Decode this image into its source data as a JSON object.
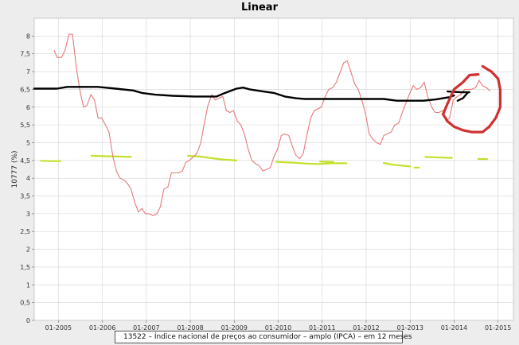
{
  "chart_data": {
    "type": "line",
    "title": "Linear",
    "ylabel": "10777 (%)",
    "xlabel": "",
    "ylim": [
      0,
      8.5
    ],
    "yticks": [
      0,
      0.5,
      1,
      1.5,
      2,
      2.5,
      3,
      3.5,
      4,
      4.5,
      5,
      5.5,
      6,
      6.5,
      7,
      7.5,
      8
    ],
    "ytick_labels": [
      "0",
      "0,5",
      "1",
      "1,5",
      "2",
      "2,5",
      "3",
      "3,5",
      "4",
      "4,5",
      "5",
      "5,5",
      "6",
      "6,5",
      "7",
      "7,5",
      "8"
    ],
    "xlim": [
      2004.45,
      2015.35
    ],
    "xticks": [
      2005,
      2006,
      2007,
      2008,
      2009,
      2010,
      2011,
      2012,
      2013,
      2014,
      2015
    ],
    "xtick_labels": [
      "01-2005",
      "01-2006",
      "01-2007",
      "01-2008",
      "01-2009",
      "01-2010",
      "01-2011",
      "01-2012",
      "01-2013",
      "01-2014",
      "01-2015"
    ],
    "grid": true,
    "legend_position": "bottom",
    "series": [
      {
        "name": "13522 – Índice nacional de preços ao consumidor – amplo (IPCA) – em 12 meses",
        "color": "#e8787a",
        "points": [
          [
            2004.9,
            7.6
          ],
          [
            2004.97,
            7.4
          ],
          [
            2005.07,
            7.4
          ],
          [
            2005.15,
            7.6
          ],
          [
            2005.24,
            8.05
          ],
          [
            2005.32,
            8.05
          ],
          [
            2005.42,
            7.0
          ],
          [
            2005.5,
            6.4
          ],
          [
            2005.57,
            6.0
          ],
          [
            2005.65,
            6.05
          ],
          [
            2005.74,
            6.35
          ],
          [
            2005.82,
            6.2
          ],
          [
            2005.9,
            5.7
          ],
          [
            2005.98,
            5.7
          ],
          [
            2006.07,
            5.5
          ],
          [
            2006.15,
            5.3
          ],
          [
            2006.24,
            4.6
          ],
          [
            2006.32,
            4.2
          ],
          [
            2006.4,
            4.0
          ],
          [
            2006.49,
            3.95
          ],
          [
            2006.57,
            3.85
          ],
          [
            2006.65,
            3.7
          ],
          [
            2006.74,
            3.3
          ],
          [
            2006.82,
            3.05
          ],
          [
            2006.9,
            3.15
          ],
          [
            2006.98,
            3.0
          ],
          [
            2007.07,
            3.0
          ],
          [
            2007.15,
            2.95
          ],
          [
            2007.24,
            3.0
          ],
          [
            2007.32,
            3.2
          ],
          [
            2007.4,
            3.7
          ],
          [
            2007.49,
            3.75
          ],
          [
            2007.57,
            4.15
          ],
          [
            2007.65,
            4.15
          ],
          [
            2007.74,
            4.15
          ],
          [
            2007.82,
            4.2
          ],
          [
            2007.9,
            4.45
          ],
          [
            2007.98,
            4.5
          ],
          [
            2008.07,
            4.6
          ],
          [
            2008.15,
            4.7
          ],
          [
            2008.24,
            5.0
          ],
          [
            2008.32,
            5.55
          ],
          [
            2008.4,
            6.05
          ],
          [
            2008.49,
            6.35
          ],
          [
            2008.57,
            6.2
          ],
          [
            2008.65,
            6.25
          ],
          [
            2008.74,
            6.3
          ],
          [
            2008.82,
            5.9
          ],
          [
            2008.9,
            5.85
          ],
          [
            2008.98,
            5.9
          ],
          [
            2009.07,
            5.6
          ],
          [
            2009.15,
            5.5
          ],
          [
            2009.24,
            5.2
          ],
          [
            2009.32,
            4.8
          ],
          [
            2009.4,
            4.5
          ],
          [
            2009.49,
            4.4
          ],
          [
            2009.57,
            4.35
          ],
          [
            2009.65,
            4.2
          ],
          [
            2009.74,
            4.25
          ],
          [
            2009.82,
            4.3
          ],
          [
            2009.9,
            4.6
          ],
          [
            2009.98,
            4.8
          ],
          [
            2010.07,
            5.2
          ],
          [
            2010.15,
            5.25
          ],
          [
            2010.24,
            5.2
          ],
          [
            2010.32,
            4.9
          ],
          [
            2010.4,
            4.65
          ],
          [
            2010.49,
            4.55
          ],
          [
            2010.57,
            4.7
          ],
          [
            2010.65,
            5.2
          ],
          [
            2010.74,
            5.7
          ],
          [
            2010.82,
            5.9
          ],
          [
            2010.9,
            5.95
          ],
          [
            2010.98,
            6.0
          ],
          [
            2011.07,
            6.3
          ],
          [
            2011.15,
            6.5
          ],
          [
            2011.24,
            6.55
          ],
          [
            2011.32,
            6.7
          ],
          [
            2011.4,
            6.95
          ],
          [
            2011.49,
            7.25
          ],
          [
            2011.57,
            7.3
          ],
          [
            2011.65,
            7.0
          ],
          [
            2011.74,
            6.65
          ],
          [
            2011.82,
            6.5
          ],
          [
            2011.9,
            6.2
          ],
          [
            2011.98,
            5.85
          ],
          [
            2012.07,
            5.25
          ],
          [
            2012.15,
            5.1
          ],
          [
            2012.24,
            5.0
          ],
          [
            2012.32,
            4.95
          ],
          [
            2012.4,
            5.2
          ],
          [
            2012.49,
            5.25
          ],
          [
            2012.57,
            5.3
          ],
          [
            2012.65,
            5.5
          ],
          [
            2012.74,
            5.55
          ],
          [
            2012.82,
            5.85
          ],
          [
            2012.9,
            6.1
          ],
          [
            2012.98,
            6.35
          ],
          [
            2013.07,
            6.6
          ],
          [
            2013.15,
            6.5
          ],
          [
            2013.24,
            6.55
          ],
          [
            2013.32,
            6.7
          ],
          [
            2013.4,
            6.3
          ],
          [
            2013.49,
            6.0
          ],
          [
            2013.57,
            5.85
          ],
          [
            2013.65,
            5.85
          ],
          [
            2013.74,
            5.9
          ],
          [
            2013.82,
            5.6
          ],
          [
            2013.9,
            5.7
          ],
          [
            2013.98,
            6.2
          ],
          [
            2014.07,
            6.3
          ],
          [
            2014.15,
            6.35
          ],
          [
            2014.24,
            6.5
          ],
          [
            2014.32,
            6.5
          ],
          [
            2014.4,
            6.5
          ],
          [
            2014.49,
            6.55
          ],
          [
            2014.57,
            6.75
          ],
          [
            2014.65,
            6.6
          ],
          [
            2014.74,
            6.55
          ],
          [
            2014.82,
            6.45
          ]
        ]
      }
    ],
    "annotations": [
      {
        "kind": "black-freehand-line",
        "color": "#000000",
        "points": [
          [
            2004.45,
            6.52
          ],
          [
            2004.97,
            6.52
          ],
          [
            2005.2,
            6.57
          ],
          [
            2005.9,
            6.57
          ],
          [
            2006.3,
            6.52
          ],
          [
            2006.7,
            6.47
          ],
          [
            2006.9,
            6.4
          ],
          [
            2007.2,
            6.35
          ],
          [
            2007.6,
            6.32
          ],
          [
            2008.1,
            6.3
          ],
          [
            2008.6,
            6.3
          ],
          [
            2008.75,
            6.38
          ],
          [
            2008.9,
            6.45
          ],
          [
            2009.05,
            6.52
          ],
          [
            2009.2,
            6.55
          ],
          [
            2009.35,
            6.5
          ],
          [
            2009.6,
            6.45
          ],
          [
            2009.9,
            6.4
          ],
          [
            2010.15,
            6.3
          ],
          [
            2010.4,
            6.25
          ],
          [
            2010.6,
            6.23
          ],
          [
            2011.1,
            6.23
          ],
          [
            2011.5,
            6.23
          ],
          [
            2012.4,
            6.23
          ],
          [
            2012.7,
            6.18
          ],
          [
            2013.0,
            6.18
          ],
          [
            2013.3,
            6.18
          ],
          [
            2013.6,
            6.22
          ],
          [
            2013.9,
            6.28
          ],
          [
            2014.0,
            6.33
          ]
        ]
      },
      {
        "kind": "black-freehand-line",
        "color": "#000000",
        "points": [
          [
            2013.85,
            6.44
          ],
          [
            2014.15,
            6.42
          ],
          [
            2014.35,
            6.42
          ]
        ]
      },
      {
        "kind": "black-freehand-line",
        "color": "#000000",
        "points": [
          [
            2014.08,
            6.18
          ],
          [
            2014.2,
            6.25
          ],
          [
            2014.32,
            6.42
          ]
        ]
      },
      {
        "kind": "green-dash",
        "color": "#c4e02a",
        "points": [
          [
            2004.6,
            4.49
          ],
          [
            2004.85,
            4.48
          ],
          [
            2005.05,
            4.48
          ]
        ]
      },
      {
        "kind": "green-dash",
        "color": "#c4e02a",
        "points": [
          [
            2005.75,
            4.63
          ],
          [
            2006.05,
            4.62
          ],
          [
            2006.35,
            4.61
          ],
          [
            2006.65,
            4.6
          ]
        ]
      },
      {
        "kind": "green-dash",
        "color": "#c4e02a",
        "points": [
          [
            2007.95,
            4.63
          ],
          [
            2008.2,
            4.61
          ],
          [
            2008.45,
            4.57
          ],
          [
            2008.7,
            4.53
          ],
          [
            2008.95,
            4.51
          ],
          [
            2009.05,
            4.5
          ]
        ]
      },
      {
        "kind": "green-dash",
        "color": "#c4e02a",
        "points": [
          [
            2009.95,
            4.46
          ],
          [
            2010.3,
            4.44
          ],
          [
            2010.65,
            4.41
          ],
          [
            2010.9,
            4.4
          ],
          [
            2011.2,
            4.42
          ],
          [
            2011.55,
            4.42
          ]
        ]
      },
      {
        "kind": "green-dash",
        "color": "#c4e02a",
        "points": [
          [
            2010.95,
            4.47
          ],
          [
            2011.25,
            4.46
          ]
        ]
      },
      {
        "kind": "green-dash",
        "color": "#c4e02a",
        "points": [
          [
            2012.4,
            4.43
          ],
          [
            2012.6,
            4.38
          ],
          [
            2012.85,
            4.35
          ],
          [
            2013.0,
            4.33
          ]
        ]
      },
      {
        "kind": "green-dash",
        "color": "#c4e02a",
        "points": [
          [
            2013.1,
            4.3
          ],
          [
            2013.2,
            4.3
          ]
        ]
      },
      {
        "kind": "green-dash",
        "color": "#c4e02a",
        "points": [
          [
            2013.35,
            4.6
          ],
          [
            2013.7,
            4.58
          ],
          [
            2013.95,
            4.57
          ]
        ]
      },
      {
        "kind": "green-dash",
        "color": "#c4e02a",
        "points": [
          [
            2014.55,
            4.54
          ],
          [
            2014.75,
            4.54
          ]
        ]
      },
      {
        "kind": "red-freehand-circle",
        "color": "#d03030",
        "points": [
          [
            2013.75,
            5.8
          ],
          [
            2013.85,
            6.1
          ],
          [
            2014.0,
            6.5
          ],
          [
            2014.2,
            6.7
          ],
          [
            2014.35,
            6.9
          ],
          [
            2014.55,
            6.92
          ]
        ]
      },
      {
        "kind": "red-freehand-circle",
        "color": "#d03030",
        "points": [
          [
            2014.65,
            7.15
          ],
          [
            2014.85,
            7.0
          ],
          [
            2015.0,
            6.8
          ],
          [
            2015.05,
            6.5
          ],
          [
            2015.05,
            6.0
          ],
          [
            2014.95,
            5.7
          ],
          [
            2014.8,
            5.45
          ],
          [
            2014.65,
            5.3
          ],
          [
            2014.4,
            5.3
          ],
          [
            2014.2,
            5.35
          ],
          [
            2014.0,
            5.45
          ],
          [
            2013.85,
            5.6
          ],
          [
            2013.75,
            5.8
          ]
        ]
      }
    ]
  }
}
